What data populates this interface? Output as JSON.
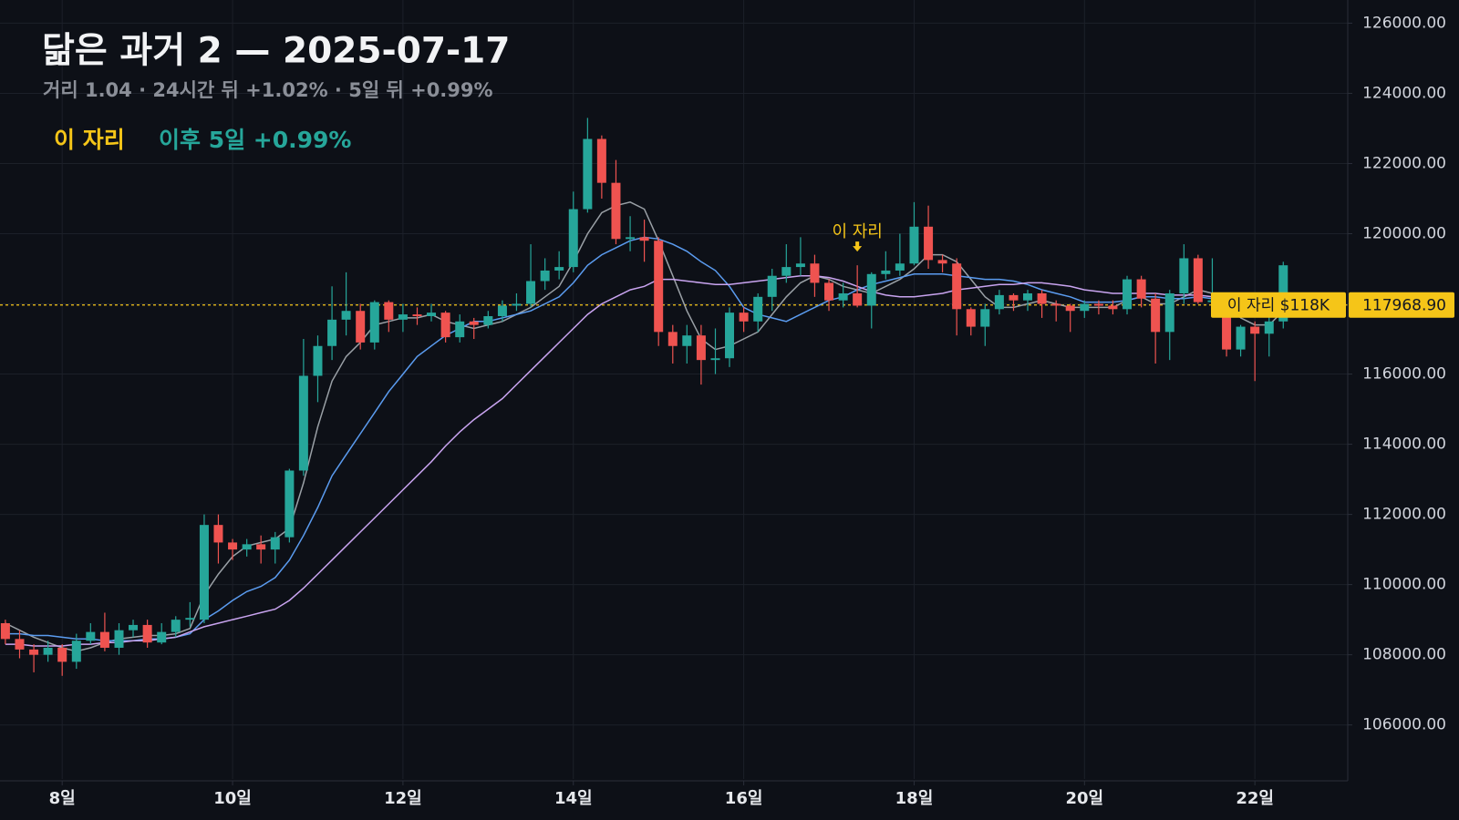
{
  "chart_data": {
    "type": "candlestick",
    "title": "닮은 과거 2 — 2025-07-17",
    "subtitle": "거리 1.04 · 24시간 뒤 +1.02% · 5일 뒤 +0.99%",
    "legend": [
      "이 자리",
      "이후 5일 +0.99%"
    ],
    "legend_colors": [
      "#f5c518",
      "#26a69a"
    ],
    "up_color": "#26a69a",
    "down_color": "#ef5350",
    "grid": true,
    "xlim": [
      7.27,
      23.09
    ],
    "ylim": [
      104460,
      126660
    ],
    "xticks": [
      {
        "value": 8,
        "label": "8일"
      },
      {
        "value": 10,
        "label": "10일"
      },
      {
        "value": 12,
        "label": "12일"
      },
      {
        "value": 14,
        "label": "14일"
      },
      {
        "value": 16,
        "label": "16일"
      },
      {
        "value": 18,
        "label": "18일"
      },
      {
        "value": 20,
        "label": "20일"
      },
      {
        "value": 22,
        "label": "22일"
      }
    ],
    "yticks": [
      {
        "value": 106000,
        "label": "106000.00"
      },
      {
        "value": 108000,
        "label": "108000.00"
      },
      {
        "value": 110000,
        "label": "110000.00"
      },
      {
        "value": 112000,
        "label": "112000.00"
      },
      {
        "value": 114000,
        "label": "114000.00"
      },
      {
        "value": 116000,
        "label": "116000.00"
      },
      {
        "value": 118000,
        "label": "118000.00"
      },
      {
        "value": 120000,
        "label": "120000.00"
      },
      {
        "value": 122000,
        "label": "122000.00"
      },
      {
        "value": 124000,
        "label": "124000.00"
      },
      {
        "value": 126000,
        "label": "126000.00"
      }
    ],
    "price_line": {
      "value": 117968.9,
      "label": "117968.90",
      "tag": "이 자리 $118K",
      "color": "#f5c518"
    },
    "annotations": [
      {
        "text": "이 자리",
        "x": 17.333,
        "color": "#f5c518"
      }
    ],
    "x": [
      7.333,
      7.5,
      7.667,
      7.833,
      8,
      8.167,
      8.333,
      8.5,
      8.667,
      8.833,
      9,
      9.167,
      9.333,
      9.5,
      9.667,
      9.833,
      10,
      10.167,
      10.333,
      10.5,
      10.667,
      10.833,
      11,
      11.167,
      11.333,
      11.5,
      11.667,
      11.833,
      12,
      12.167,
      12.333,
      12.5,
      12.667,
      12.833,
      13,
      13.167,
      13.333,
      13.5,
      13.667,
      13.833,
      14,
      14.167,
      14.333,
      14.5,
      14.667,
      14.833,
      15,
      15.167,
      15.333,
      15.5,
      15.667,
      15.833,
      16,
      16.167,
      16.333,
      16.5,
      16.667,
      16.833,
      17,
      17.167,
      17.333,
      17.5,
      17.667,
      17.833,
      18,
      18.167,
      18.333,
      18.5,
      18.667,
      18.833,
      19,
      19.167,
      19.333,
      19.5,
      19.667,
      19.833,
      20,
      20.167,
      20.333,
      20.5,
      20.667,
      20.833,
      21,
      21.167,
      21.333,
      21.5,
      21.667,
      21.833,
      22,
      22.167,
      22.333
    ],
    "open": [
      108900,
      108450,
      108150,
      108000,
      108200,
      107800,
      108400,
      108650,
      108200,
      108700,
      108850,
      108350,
      108650,
      109000,
      109000,
      111700,
      111200,
      111000,
      111150,
      111000,
      111350,
      113250,
      115950,
      116800,
      117550,
      117800,
      116900,
      118050,
      117550,
      117700,
      117650,
      117750,
      117050,
      117500,
      117400,
      117650,
      117950,
      118000,
      118650,
      118950,
      119050,
      120700,
      122700,
      121450,
      119850,
      119900,
      119800,
      117200,
      116800,
      117100,
      116400,
      116450,
      117750,
      117500,
      118200,
      118800,
      119050,
      119150,
      118600,
      118100,
      118300,
      117950,
      118850,
      118950,
      119150,
      120200,
      119250,
      119150,
      117850,
      117350,
      117850,
      118250,
      118100,
      118300,
      118000,
      117950,
      117800,
      118000,
      117950,
      117850,
      118700,
      118150,
      117200,
      118300,
      119300,
      118050,
      118100,
      116700,
      117350,
      117150,
      117500
    ],
    "high": [
      109000,
      108700,
      108300,
      108400,
      108300,
      108600,
      108900,
      109200,
      108900,
      109000,
      109000,
      108900,
      109100,
      109500,
      112000,
      112000,
      111300,
      111300,
      111400,
      111500,
      113300,
      117000,
      117100,
      118500,
      118900,
      118000,
      118100,
      118100,
      118000,
      117900,
      118000,
      117800,
      117700,
      117600,
      117800,
      118100,
      118300,
      119700,
      119300,
      119500,
      121200,
      123300,
      122800,
      122100,
      120500,
      120400,
      119900,
      117400,
      117400,
      117400,
      117300,
      117900,
      117900,
      118300,
      119000,
      119700,
      119900,
      119400,
      118700,
      118600,
      119100,
      118900,
      119500,
      120000,
      120900,
      120800,
      119400,
      119300,
      117900,
      118000,
      118400,
      118300,
      118400,
      118400,
      118100,
      118000,
      118100,
      118100,
      118100,
      118800,
      118800,
      118300,
      118400,
      119700,
      119400,
      119300,
      118300,
      117400,
      117500,
      118100,
      119200
    ],
    "low": [
      108300,
      107900,
      107500,
      107800,
      107400,
      107600,
      108300,
      108100,
      108000,
      108500,
      108200,
      108300,
      108500,
      108800,
      108900,
      110600,
      110700,
      110800,
      110600,
      110600,
      111200,
      113100,
      115200,
      116400,
      117100,
      116700,
      116700,
      117200,
      117200,
      117400,
      117500,
      116900,
      116900,
      117000,
      117300,
      117500,
      117800,
      117900,
      118400,
      118700,
      118900,
      120600,
      121000,
      119700,
      119500,
      119200,
      116800,
      116300,
      116300,
      115700,
      116000,
      116200,
      117200,
      117200,
      117800,
      118600,
      118800,
      118200,
      117800,
      117900,
      117900,
      117300,
      118700,
      118800,
      119100,
      119000,
      118900,
      117100,
      117100,
      116800,
      117700,
      117800,
      117800,
      117600,
      117500,
      117200,
      117600,
      117700,
      117700,
      117700,
      117900,
      116300,
      116400,
      118000,
      118000,
      117800,
      116500,
      116500,
      115800,
      116500,
      117300
    ],
    "close": [
      108450,
      108150,
      108000,
      108200,
      107800,
      108400,
      108650,
      108200,
      108700,
      108850,
      108350,
      108650,
      109000,
      109050,
      111700,
      111200,
      111000,
      111150,
      111000,
      111350,
      113250,
      115950,
      116800,
      117550,
      117800,
      116900,
      118050,
      117550,
      117700,
      117650,
      117750,
      117050,
      117500,
      117400,
      117650,
      117950,
      118000,
      118650,
      118950,
      119050,
      120700,
      122700,
      121450,
      119850,
      119900,
      119800,
      117200,
      116800,
      117100,
      116400,
      116450,
      117750,
      117500,
      118200,
      118800,
      119050,
      119150,
      118600,
      118100,
      118300,
      117950,
      118850,
      118950,
      119150,
      120200,
      119250,
      119150,
      117850,
      117350,
      117850,
      118250,
      118100,
      118300,
      118000,
      117950,
      117800,
      118000,
      117950,
      117850,
      118700,
      118150,
      117200,
      118300,
      119300,
      118050,
      118100,
      116700,
      117350,
      117150,
      117500,
      119100
    ],
    "lines": [
      {
        "color": "#9aa0a6",
        "values": [
          108900,
          108700,
          108500,
          108350,
          108200,
          108100,
          108200,
          108350,
          108450,
          108500,
          108550,
          108550,
          108600,
          108750,
          109700,
          110300,
          110800,
          111100,
          111200,
          111300,
          111600,
          112900,
          114500,
          115800,
          116500,
          116900,
          117400,
          117500,
          117600,
          117600,
          117700,
          117500,
          117400,
          117300,
          117400,
          117500,
          117700,
          117900,
          118200,
          118500,
          119200,
          120000,
          120600,
          120800,
          120900,
          120700,
          119800,
          118800,
          117800,
          117000,
          116700,
          116800,
          117000,
          117200,
          117700,
          118200,
          118600,
          118800,
          118700,
          118500,
          118400,
          118300,
          118500,
          118700,
          119000,
          119400,
          119400,
          119200,
          118700,
          118200,
          117900,
          117900,
          118000,
          118100,
          118000,
          117900,
          117900,
          117900,
          117900,
          118100,
          118200,
          118000,
          118000,
          118200,
          118400,
          118300,
          118000,
          117600,
          117400,
          117400,
          117800
        ]
      },
      {
        "color": "#5b9cf0",
        "values": [
          108600,
          108600,
          108550,
          108550,
          108500,
          108450,
          108450,
          108400,
          108400,
          108400,
          108450,
          108450,
          108500,
          108600,
          109000,
          109250,
          109550,
          109800,
          109950,
          110200,
          110700,
          111400,
          112200,
          113100,
          113700,
          114300,
          114900,
          115500,
          116000,
          116500,
          116800,
          117100,
          117300,
          117500,
          117500,
          117600,
          117700,
          117800,
          118000,
          118200,
          118600,
          119100,
          119400,
          119600,
          119800,
          119900,
          119850,
          119700,
          119500,
          119200,
          118950,
          118500,
          117900,
          117700,
          117600,
          117500,
          117700,
          117900,
          118100,
          118200,
          118400,
          118550,
          118650,
          118750,
          118850,
          118850,
          118850,
          118800,
          118750,
          118700,
          118700,
          118650,
          118550,
          118400,
          118300,
          118200,
          118050,
          118050,
          118050,
          118100,
          118200,
          118200,
          118150,
          118150,
          118200,
          118150,
          118000,
          117900,
          117800,
          117700,
          117700
        ]
      },
      {
        "color": "#c9a4f0",
        "values": [
          108300,
          108300,
          108250,
          108250,
          108250,
          108300,
          108300,
          108350,
          108350,
          108400,
          108400,
          108450,
          108500,
          108650,
          108800,
          108900,
          109000,
          109100,
          109200,
          109300,
          109550,
          109900,
          110300,
          110700,
          111100,
          111500,
          111900,
          112300,
          112700,
          113100,
          113500,
          113950,
          114350,
          114700,
          115000,
          115300,
          115700,
          116100,
          116500,
          116900,
          117300,
          117700,
          118000,
          118200,
          118400,
          118500,
          118700,
          118700,
          118650,
          118600,
          118550,
          118550,
          118600,
          118650,
          118700,
          118750,
          118800,
          118800,
          118750,
          118650,
          118500,
          118350,
          118250,
          118200,
          118200,
          118250,
          118300,
          118400,
          118450,
          118500,
          118550,
          118550,
          118600,
          118600,
          118550,
          118500,
          118400,
          118350,
          118300,
          118300,
          118300,
          118300,
          118250,
          118250,
          118250,
          118200,
          118150,
          118100,
          118050,
          118000,
          118000
        ]
      }
    ]
  }
}
